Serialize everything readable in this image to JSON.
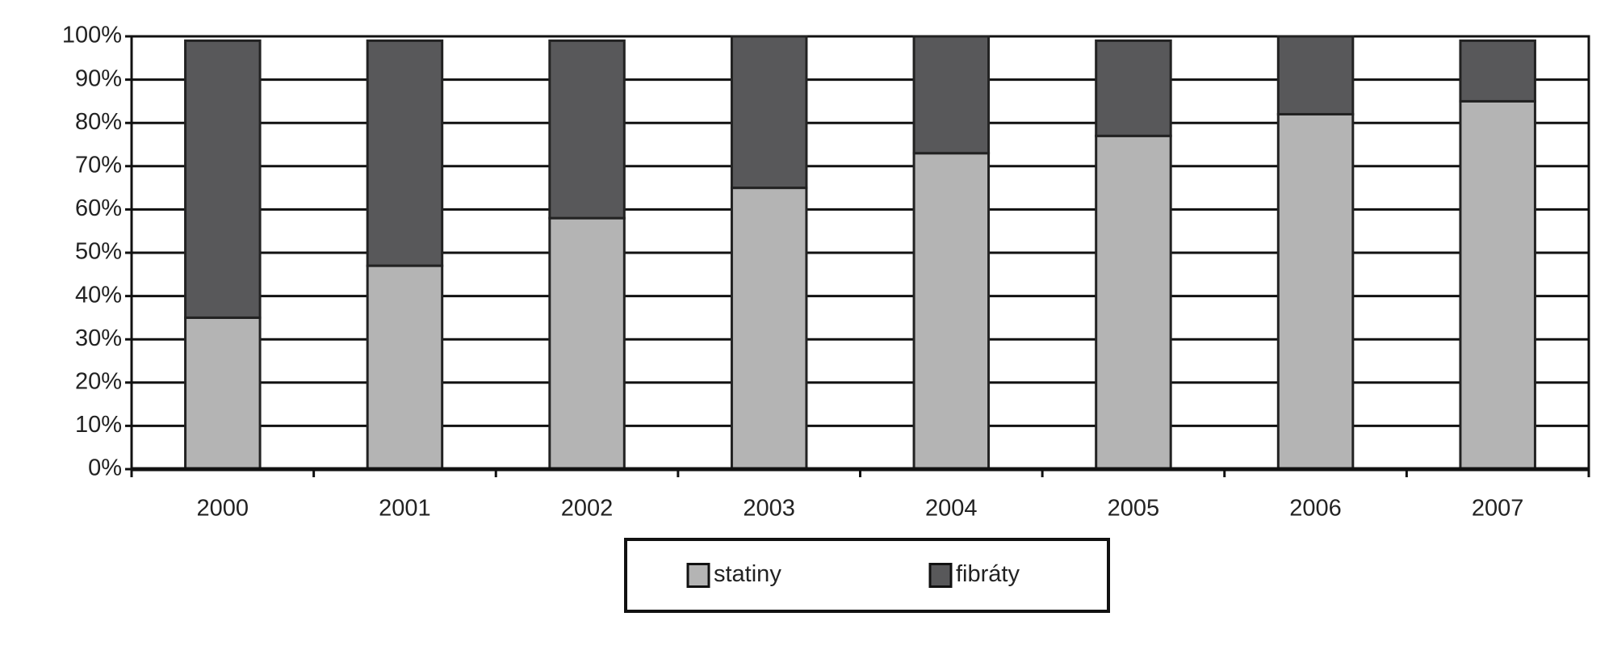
{
  "chart_data": {
    "type": "stacked_bar",
    "categories": [
      "2000",
      "2001",
      "2002",
      "2003",
      "2004",
      "2005",
      "2006",
      "2007"
    ],
    "series": [
      {
        "name": "statiny",
        "color": "#b4b4b4",
        "values": [
          35,
          47,
          58,
          65,
          73,
          77,
          82,
          85
        ]
      },
      {
        "name": "fibráty",
        "color": "#58585a",
        "values": [
          64,
          52,
          41,
          35,
          27,
          22,
          18,
          14
        ]
      }
    ],
    "ylim": [
      0,
      100
    ],
    "yticks": [
      {
        "value": 0,
        "label": "0%"
      },
      {
        "value": 10,
        "label": "10%"
      },
      {
        "value": 20,
        "label": "20%"
      },
      {
        "value": 30,
        "label": "30%"
      },
      {
        "value": 40,
        "label": "40%"
      },
      {
        "value": 50,
        "label": "50%"
      },
      {
        "value": 60,
        "label": "60%"
      },
      {
        "value": 70,
        "label": "70%"
      },
      {
        "value": 80,
        "label": "80%"
      },
      {
        "value": 90,
        "label": "90%"
      },
      {
        "value": 100,
        "label": "100%"
      }
    ],
    "grid": true,
    "legend": "bottom"
  }
}
